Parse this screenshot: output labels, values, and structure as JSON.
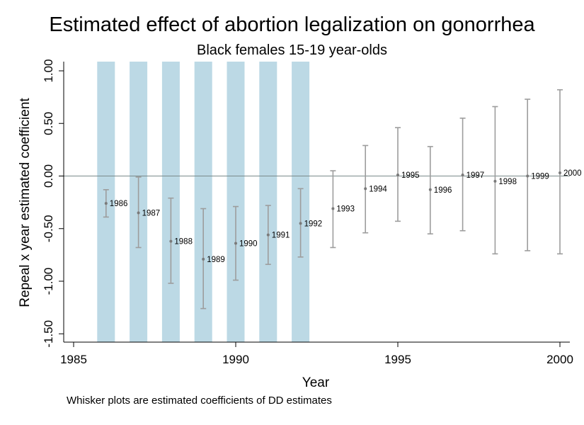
{
  "chart_data": {
    "type": "errorbar",
    "title": "Estimated effect of abortion legalization on gonorrhea",
    "subtitle": "Black females 15-19 year-olds",
    "xlabel": "Year",
    "ylabel": "Repeal x year estimated coefficient",
    "note": "Whisker plots are estimated coefficients of DD estimates",
    "xlim": [
      1984.8,
      2000.3
    ],
    "ylim": [
      -1.6,
      1.1
    ],
    "x_ticks": [
      1985,
      1990,
      1995,
      2000
    ],
    "x_tick_labels": [
      "1985",
      "1990",
      "1995",
      "2000"
    ],
    "y_ticks": [
      1.0,
      0.5,
      0.0,
      -0.5,
      -1.0,
      -1.5
    ],
    "y_tick_labels": [
      "1.00",
      "0.50",
      "0.00",
      "-0.50",
      "-1.00",
      "-1.50"
    ],
    "reference_line_y": 0,
    "shaded_years": [
      1986,
      1987,
      1988,
      1989,
      1990,
      1991,
      1992
    ],
    "points": [
      {
        "year": 1986,
        "label": "1986",
        "estimate": -0.26,
        "lower": -0.39,
        "upper": -0.13
      },
      {
        "year": 1987,
        "label": "1987",
        "estimate": -0.35,
        "lower": -0.68,
        "upper": -0.01
      },
      {
        "year": 1988,
        "label": "1988",
        "estimate": -0.62,
        "lower": -1.02,
        "upper": -0.21
      },
      {
        "year": 1989,
        "label": "1989",
        "estimate": -0.79,
        "lower": -1.26,
        "upper": -0.31
      },
      {
        "year": 1990,
        "label": "1990",
        "estimate": -0.64,
        "lower": -0.99,
        "upper": -0.29
      },
      {
        "year": 1991,
        "label": "1991",
        "estimate": -0.56,
        "lower": -0.84,
        "upper": -0.28
      },
      {
        "year": 1992,
        "label": "1992",
        "estimate": -0.45,
        "lower": -0.77,
        "upper": -0.12
      },
      {
        "year": 1993,
        "label": "1993",
        "estimate": -0.31,
        "lower": -0.68,
        "upper": 0.05
      },
      {
        "year": 1994,
        "label": "1994",
        "estimate": -0.12,
        "lower": -0.54,
        "upper": 0.29
      },
      {
        "year": 1995,
        "label": "1995",
        "estimate": 0.01,
        "lower": -0.43,
        "upper": 0.46
      },
      {
        "year": 1996,
        "label": "1996",
        "estimate": -0.13,
        "lower": -0.55,
        "upper": 0.28
      },
      {
        "year": 1997,
        "label": "1997",
        "estimate": 0.01,
        "lower": -0.52,
        "upper": 0.55
      },
      {
        "year": 1998,
        "label": "1998",
        "estimate": -0.05,
        "lower": -0.74,
        "upper": 0.66
      },
      {
        "year": 1999,
        "label": "1999",
        "estimate": 0.0,
        "lower": -0.71,
        "upper": 0.73
      },
      {
        "year": 2000,
        "label": "2000",
        "estimate": 0.03,
        "lower": -0.74,
        "upper": 0.82
      }
    ],
    "colors": {
      "shade": "#bcd9e5",
      "whisker": "#9d9d9d",
      "marker": "#7a7a7a",
      "reference_line": "#7a8a8a",
      "axis": "#000000"
    }
  }
}
